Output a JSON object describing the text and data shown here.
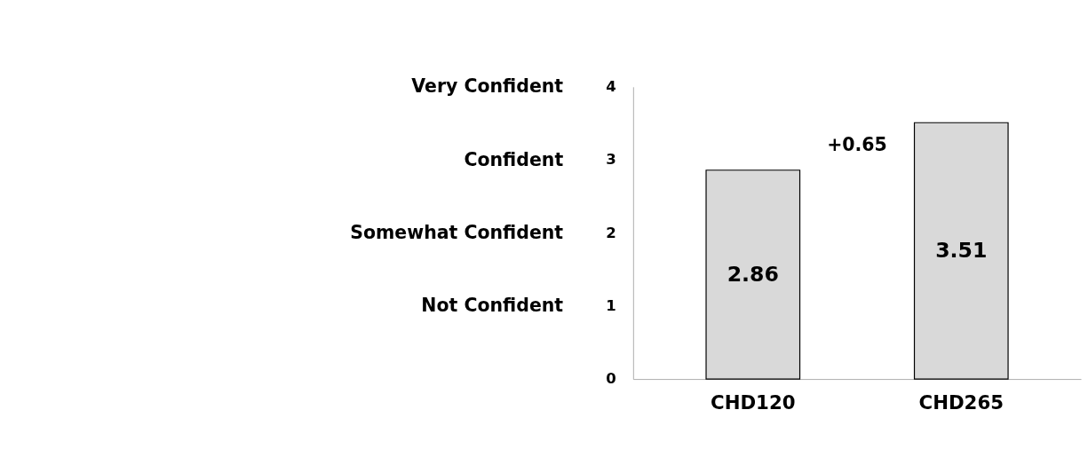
{
  "chart_data": {
    "type": "bar",
    "categories": [
      "CHD120",
      "CHD265"
    ],
    "values": [
      2.86,
      3.51
    ],
    "color": "#d9d9d9",
    "ylim": [
      0,
      4
    ],
    "yticks": [
      0,
      1,
      2,
      3,
      4
    ],
    "grid": false,
    "data_labels": true,
    "annotations": [
      "Very Confident",
      "Confident",
      "Somewhat Confident",
      "Not Confident",
      "+0.65"
    ]
  }
}
